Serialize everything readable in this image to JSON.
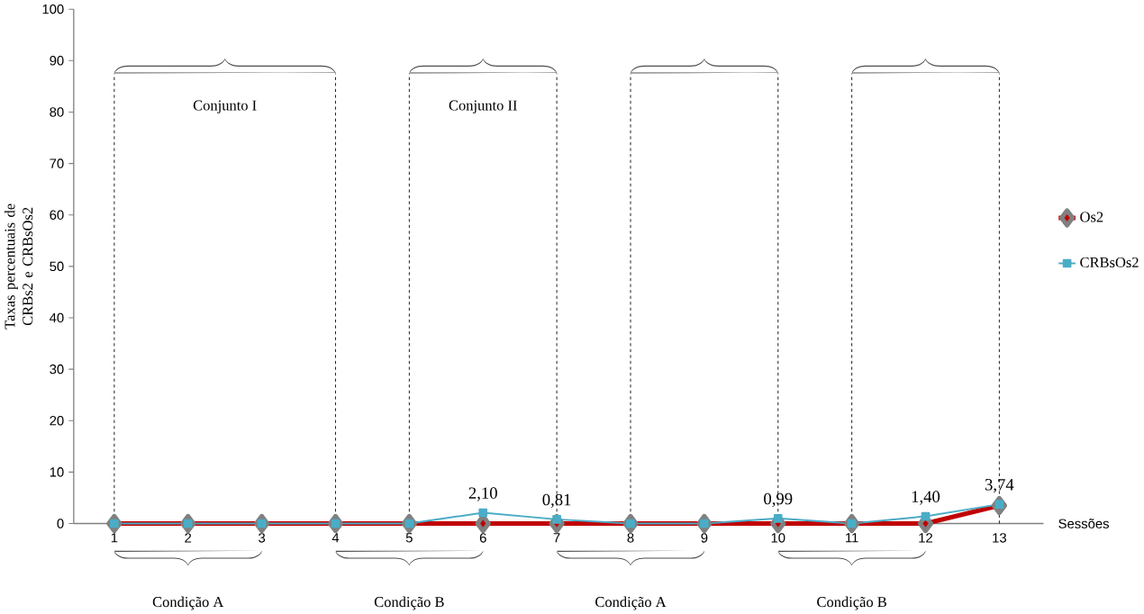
{
  "chart_data": {
    "type": "line",
    "ylabel": "Taxas percentuais de CRBs2 e CRBsOs2",
    "xlabel": "Sessões",
    "x": [
      1,
      2,
      3,
      4,
      5,
      6,
      7,
      8,
      9,
      10,
      11,
      12,
      13
    ],
    "xlim": [
      0.45,
      13.6
    ],
    "xticks": [
      1,
      2,
      3,
      4,
      5,
      6,
      7,
      8,
      9,
      10,
      11,
      12,
      13
    ],
    "ylim": [
      0,
      100
    ],
    "yticks": [
      0,
      10,
      20,
      30,
      40,
      50,
      60,
      70,
      80,
      90,
      100
    ],
    "series": [
      {
        "name": "Os2",
        "color": "#c00000",
        "marker": "diamond",
        "values": [
          0,
          0,
          0,
          0,
          0,
          0,
          0,
          0,
          0,
          0,
          0,
          0,
          3.5
        ]
      },
      {
        "name": "CRBsOs2",
        "color": "#4bacc6",
        "marker": "square",
        "values": [
          0,
          0,
          0,
          0,
          0,
          2.1,
          0.81,
          0,
          0,
          0.99,
          0,
          1.4,
          3.74
        ],
        "value_labels": [
          null,
          null,
          null,
          null,
          null,
          "2,10",
          "0,81",
          null,
          null,
          "0,99",
          null,
          "1,40",
          "3,74"
        ]
      }
    ],
    "annotations": [
      "Conjunto I",
      "Conjunto II",
      "Condição A",
      "Condição B",
      "Condição A",
      "Condição B"
    ],
    "ref_lines": [
      {
        "axis": "x",
        "value": 1,
        "line_style": "dashed"
      },
      {
        "axis": "x",
        "value": 4,
        "line_style": "dashed"
      },
      {
        "axis": "x",
        "value": 5,
        "line_style": "dashed"
      },
      {
        "axis": "x",
        "value": 7,
        "line_style": "dashed"
      },
      {
        "axis": "x",
        "value": 8,
        "line_style": "dashed"
      },
      {
        "axis": "x",
        "value": 10,
        "line_style": "dashed"
      },
      {
        "axis": "x",
        "value": 11,
        "line_style": "dashed"
      },
      {
        "axis": "x",
        "value": 13,
        "line_style": "dashed"
      }
    ],
    "legend": "right"
  }
}
